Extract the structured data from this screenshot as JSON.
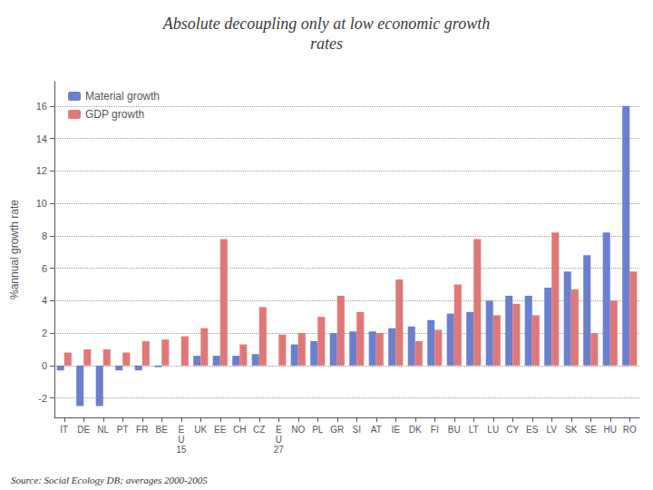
{
  "chart_data": {
    "type": "bar",
    "title": "Absolute decoupling only at low economic growth\nrates",
    "y_label": "%annual growth rate",
    "annotations": [
      "Source: Social Ecology DB; averages 2000-2005"
    ],
    "categories": [
      "IT",
      "DE",
      "NL",
      "PT",
      "FR",
      "BE",
      "E\nU\n15",
      "UK",
      "EE",
      "CH",
      "CZ",
      "E\nU\n27",
      "NO",
      "PL",
      "GR",
      "SI",
      "AT",
      "IE",
      "DK",
      "FI",
      "BU",
      "LT",
      "LU",
      "CY",
      "ES",
      "LV",
      "SK",
      "SE",
      "HU",
      "RO"
    ],
    "series": [
      {
        "name": "Material growth",
        "color": "#6B7FCC",
        "values": [
          -0.3,
          -2.5,
          -2.5,
          -0.3,
          -0.3,
          -0.1,
          0.0,
          0.6,
          0.6,
          0.6,
          0.7,
          0.0,
          1.3,
          1.5,
          2.0,
          2.1,
          2.1,
          2.3,
          2.4,
          2.8,
          3.2,
          3.3,
          4.0,
          4.3,
          4.3,
          4.8,
          5.8,
          6.8,
          8.2,
          16.0
        ]
      },
      {
        "name": "GDP growth",
        "color": "#E07878",
        "values": [
          0.8,
          1.0,
          1.0,
          0.8,
          1.5,
          1.6,
          1.8,
          2.3,
          7.8,
          1.3,
          3.6,
          1.9,
          2.0,
          3.0,
          4.3,
          3.3,
          2.0,
          5.3,
          1.5,
          2.2,
          5.0,
          7.8,
          3.1,
          3.8,
          3.1,
          8.2,
          4.7,
          2.0,
          4.0,
          5.8
        ]
      }
    ],
    "ylim": [
      -3.2,
      17.5
    ],
    "yticks": [
      -2,
      0,
      2,
      4,
      6,
      8,
      10,
      12,
      14,
      16
    ],
    "grid": true,
    "legend": "upper left"
  }
}
